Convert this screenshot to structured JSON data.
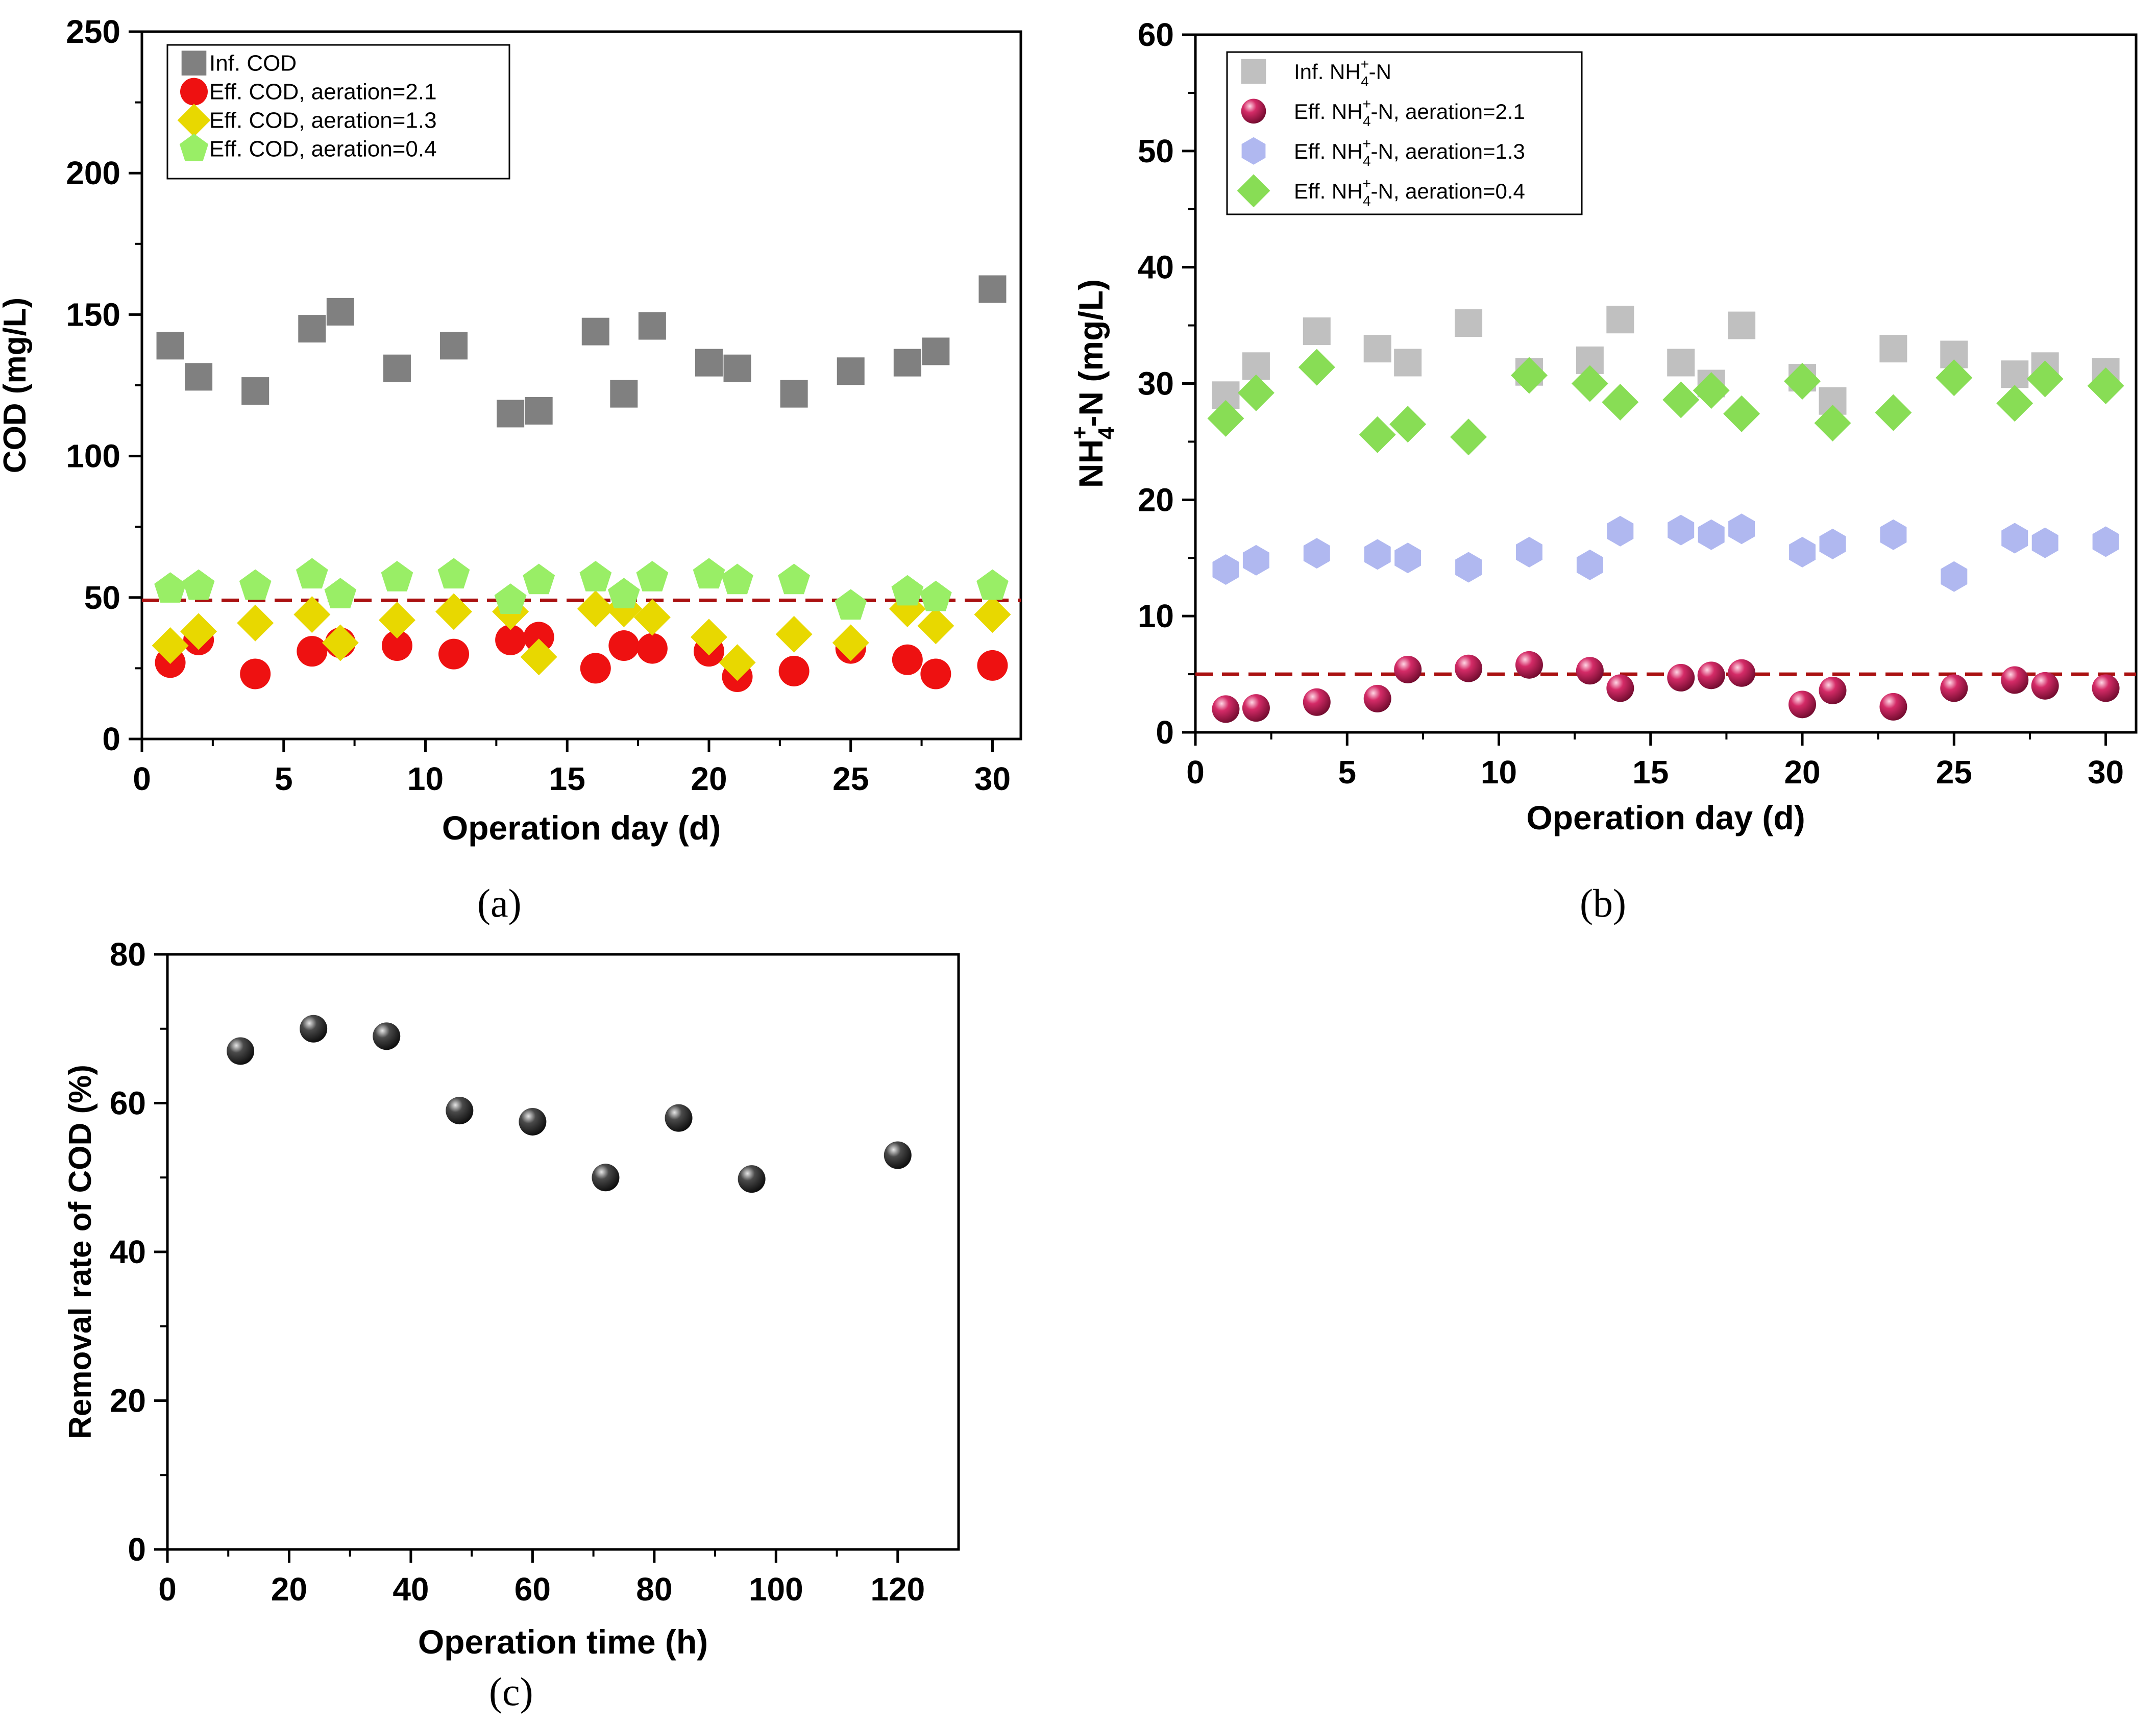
{
  "colors": {
    "inf_cod": "#808080",
    "eff_cod_21": "#ee1111",
    "eff_cod_13": "#e8d800",
    "eff_cod_04": "#99ee66",
    "inf_nh4": "#c0c0c0",
    "eff_nh4_21": "#c0134f",
    "eff_nh4_13": "#b0b8f0",
    "eff_nh4_04": "#88dd55",
    "limit_line": "#aa1111",
    "removal": "#2a2a2a"
  },
  "panels": {
    "a": {
      "label": "(a)"
    },
    "b": {
      "label": "(b)"
    },
    "c": {
      "label": "(c)"
    }
  },
  "chart_data": [
    {
      "id": "a",
      "type": "scatter",
      "title": "",
      "xlabel": "Operation day (d)",
      "ylabel": "COD  (mg/L)",
      "xlim": [
        0,
        31
      ],
      "ylim": [
        0,
        250
      ],
      "xticks": [
        0,
        5,
        10,
        15,
        20,
        25,
        30
      ],
      "yticks": [
        0,
        50,
        100,
        150,
        200,
        250
      ],
      "reference_line": 49,
      "legend": "top-left",
      "series": [
        {
          "name": "Inf. COD",
          "marker": "square",
          "x": [
            1,
            2,
            4,
            6,
            7,
            9,
            11,
            13,
            14,
            16,
            17,
            18,
            20,
            21,
            23,
            25,
            27,
            28,
            30
          ],
          "values": [
            139,
            128,
            123,
            145,
            151,
            131,
            139,
            115,
            116,
            144,
            122,
            146,
            133,
            131,
            122,
            130,
            133,
            137,
            159
          ]
        },
        {
          "name": "Eff. COD, aeration=2.1",
          "marker": "circle",
          "x": [
            1,
            2,
            4,
            6,
            7,
            9,
            11,
            13,
            14,
            16,
            17,
            18,
            20,
            21,
            23,
            25,
            27,
            28,
            30
          ],
          "values": [
            27,
            35,
            23,
            31,
            34,
            33,
            30,
            35,
            36,
            25,
            33,
            32,
            31,
            22,
            24,
            32,
            28,
            23,
            26
          ]
        },
        {
          "name": "Eff. COD, aeration=1.3",
          "marker": "diamond",
          "x": [
            1,
            2,
            4,
            6,
            7,
            9,
            11,
            13,
            14,
            16,
            17,
            18,
            20,
            21,
            23,
            25,
            27,
            28,
            30
          ],
          "values": [
            33,
            38,
            41,
            44,
            34,
            42,
            45,
            45,
            29,
            46,
            46,
            43,
            36,
            27,
            37,
            34,
            46,
            40,
            44
          ]
        },
        {
          "name": "Eff. COD, aeration=0.4",
          "marker": "pentagon",
          "x": [
            1,
            2,
            4,
            6,
            7,
            9,
            11,
            13,
            14,
            16,
            17,
            18,
            20,
            21,
            23,
            25,
            27,
            28,
            30
          ],
          "values": [
            53,
            54,
            54,
            58,
            51,
            57,
            58,
            49,
            56,
            57,
            51,
            57,
            58,
            56,
            56,
            47,
            52,
            50,
            54
          ]
        }
      ]
    },
    {
      "id": "b",
      "type": "scatter",
      "title": "",
      "xlabel": "Operation day (d)",
      "ylabel": "(mg/L)",
      "ylabel_base": "NH",
      "ylabel_sub": "4",
      "ylabel_sup": "+",
      "ylabel_suffix": "-N",
      "xlim": [
        0,
        31
      ],
      "ylim": [
        0,
        60
      ],
      "xticks": [
        0,
        5,
        10,
        15,
        20,
        25,
        30
      ],
      "yticks": [
        0,
        10,
        20,
        30,
        40,
        50,
        60
      ],
      "reference_line": 5,
      "legend": "top-left",
      "series": [
        {
          "name": "Inf. NH4+-N",
          "label_pre": "Inf. NH",
          "label_post": "-N",
          "marker": "square",
          "x": [
            1,
            2,
            4,
            6,
            7,
            9,
            11,
            13,
            14,
            16,
            17,
            18,
            20,
            21,
            23,
            25,
            27,
            28,
            30
          ],
          "values": [
            29,
            31.5,
            34.5,
            33,
            31.8,
            35.2,
            31,
            32,
            35.5,
            31.8,
            30,
            35,
            30.5,
            28.5,
            33,
            32.5,
            30.8,
            31.5,
            31
          ]
        },
        {
          "name": "Eff. NH4+-N, aeration=2.1",
          "label_pre": "Eff. NH",
          "label_post": "-N, aeration=2.1",
          "marker": "sphere",
          "x": [
            1,
            2,
            4,
            6,
            7,
            9,
            11,
            13,
            14,
            16,
            17,
            18,
            20,
            21,
            23,
            25,
            27,
            28,
            30
          ],
          "values": [
            2,
            2.1,
            2.6,
            2.9,
            5.4,
            5.5,
            5.8,
            5.3,
            3.8,
            4.7,
            4.9,
            5.1,
            2.4,
            3.6,
            2.2,
            3.8,
            4.5,
            4,
            3.8
          ]
        },
        {
          "name": "Eff. NH4+-N, aeration=1.3",
          "label_pre": "Eff. NH",
          "label_post": "-N, aeration=1.3",
          "marker": "hexagon",
          "x": [
            1,
            2,
            4,
            6,
            7,
            9,
            11,
            13,
            14,
            16,
            17,
            18,
            20,
            21,
            23,
            25,
            27,
            28,
            30
          ],
          "values": [
            14,
            14.8,
            15.4,
            15.3,
            15,
            14.2,
            15.5,
            14.4,
            17.3,
            17.4,
            17,
            17.5,
            15.5,
            16.2,
            17,
            13.4,
            16.7,
            16.3,
            16.4
          ]
        },
        {
          "name": "Eff. NH4+-N, aeration=0.4",
          "label_pre": "Eff. NH",
          "label_post": "-N, aeration=0.4",
          "marker": "diamond",
          "x": [
            1,
            2,
            4,
            6,
            7,
            9,
            11,
            13,
            14,
            16,
            17,
            18,
            20,
            21,
            23,
            25,
            27,
            28,
            30
          ],
          "values": [
            27,
            29.2,
            31.4,
            25.6,
            26.5,
            25.4,
            30.7,
            30,
            28.4,
            28.6,
            29.4,
            27.4,
            30.2,
            26.6,
            27.5,
            30.5,
            28.3,
            30.4,
            29.8
          ]
        }
      ]
    },
    {
      "id": "c",
      "type": "scatter",
      "title": "",
      "xlabel": "Operation time (h)",
      "ylabel": "Removal rate of COD (%)",
      "xlim": [
        0,
        130
      ],
      "ylim": [
        0,
        80
      ],
      "xticks": [
        0,
        20,
        40,
        60,
        80,
        100,
        120
      ],
      "yticks": [
        0,
        20,
        40,
        60,
        80
      ],
      "series": [
        {
          "name": "Removal rate of COD",
          "marker": "sphere",
          "x": [
            12,
            24,
            36,
            48,
            60,
            72,
            84,
            96,
            120
          ],
          "values": [
            67,
            70,
            69,
            59,
            57.5,
            50,
            58,
            49.8,
            53
          ]
        }
      ]
    }
  ]
}
